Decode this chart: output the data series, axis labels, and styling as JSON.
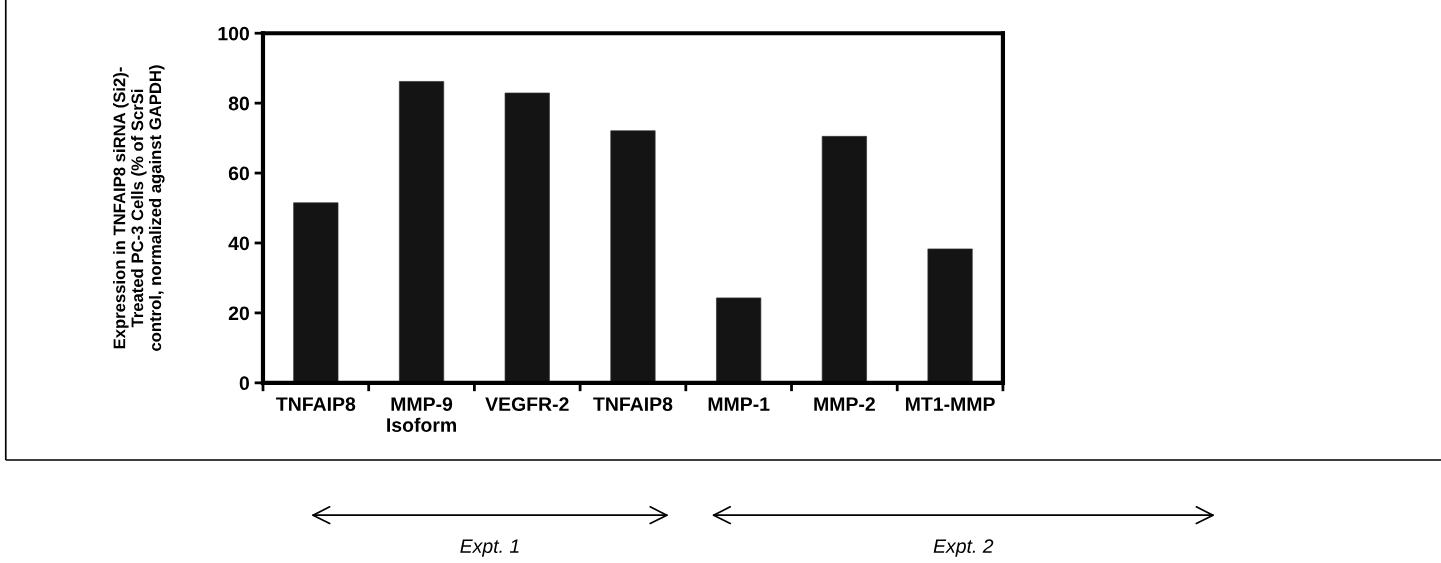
{
  "chart_data": {
    "type": "bar",
    "ylabel": "Expression in TNFAIP8 siRNA (Si2)-\nTreated PC-3 Cells (% of ScrSi\ncontrol, normalized against GAPDH)",
    "categories": [
      "TNFAIP8",
      "MMP-9\nIsoform",
      "VEGFR-2",
      "TNFAIP8",
      "MMP-1",
      "MMP-2",
      "MT1-MMP"
    ],
    "values": [
      51.5,
      86.2,
      82.9,
      72.1,
      24.3,
      70.5,
      38.3
    ],
    "color": "#141414",
    "ylim": [
      0,
      100
    ],
    "yticks": [
      0,
      20,
      40,
      60,
      80,
      100
    ],
    "grid": false,
    "annotations": [
      "Expt. 1",
      "Expt. 2"
    ]
  }
}
